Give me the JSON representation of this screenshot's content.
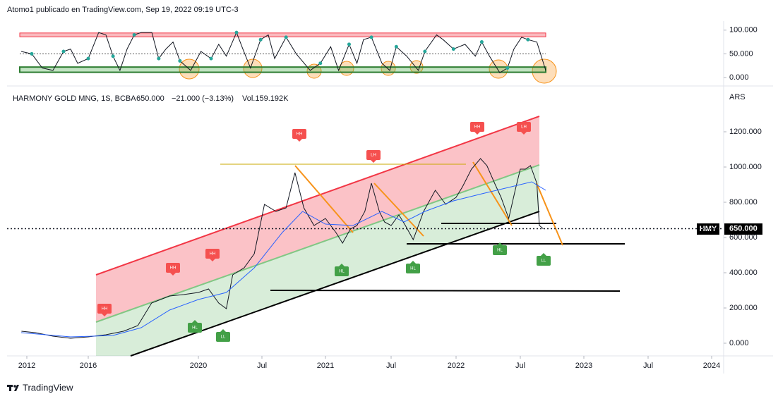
{
  "header": "Atomo1 publicado en TradingView.com, Sep 19, 2022 09:19 UTC-3",
  "footer": "TradingView",
  "chart_data": [
    {
      "type": "line",
      "xlim": [
        2011.55,
        2024.2
      ],
      "ylim": [
        -12,
        119
      ],
      "yticks": [
        {
          "value": 100,
          "label": "100.000"
        },
        {
          "value": 50,
          "label": "50.000"
        },
        {
          "value": 0,
          "label": "0.000"
        }
      ],
      "upper_band": [
        86,
        94
      ],
      "lower_band": [
        11,
        22
      ],
      "midline": 50,
      "series": [
        {
          "color": "#131722",
          "x": [
            2011.63,
            2012.32,
            2013.01,
            2013.7,
            2014.39,
            2014.85,
            2015.31,
            2016,
            2016.38,
            2016.64,
            2016.9,
            2017.15,
            2017.41,
            2017.67,
            2017.92,
            2018.31,
            2018.56,
            2018.82,
            2019.08,
            2019.33,
            2019.72,
            2020.02,
            2020.1,
            2020.16,
            2020.22,
            2020.3,
            2020.35,
            2020.41,
            2020.49,
            2020.55,
            2020.6,
            2020.69,
            2020.77,
            2020.88,
            2020.96,
            2021.04,
            2021.1,
            2021.18,
            2021.24,
            2021.29,
            2021.35,
            2021.43,
            2021.49,
            2021.54,
            2021.62,
            2021.71,
            2021.76,
            2021.85,
            2021.9,
            2021.98,
            2022.07,
            2022.15,
            2022.2,
            2022.26,
            2022.34,
            2022.4,
            2022.45,
            2022.51,
            2022.56,
            2022.63,
            2022.7
          ],
          "values": [
            55,
            50,
            20,
            15,
            55,
            60,
            30,
            40,
            95,
            90,
            45,
            15,
            60,
            90,
            95,
            95,
            40,
            60,
            75,
            35,
            15,
            55,
            40,
            70,
            45,
            95,
            60,
            20,
            80,
            90,
            40,
            85,
            50,
            15,
            30,
            65,
            15,
            70,
            30,
            80,
            85,
            30,
            15,
            65,
            45,
            15,
            55,
            90,
            80,
            60,
            70,
            45,
            75,
            45,
            10,
            20,
            60,
            85,
            80,
            75,
            15
          ]
        }
      ]
    },
    {
      "type": "line",
      "title": "HARMONY GOLD MNG, 1S, BCBA",
      "last_text": "650.000",
      "change_text": "−21.000 (−3.13%)",
      "volume_text": "Vol.159.192K",
      "currency": "ARS",
      "symbol": "HMY",
      "last": {
        "value": 650,
        "label": "650.000"
      },
      "xlim": [
        2011.55,
        2024.2
      ],
      "xticks": [
        2012,
        2016,
        2020,
        {
          "value": 2020.5,
          "label": "Jul"
        },
        2021,
        {
          "value": 2021.5,
          "label": "Jul"
        },
        2022,
        {
          "value": 2022.5,
          "label": "Jul"
        },
        2023,
        {
          "value": 2023.5,
          "label": "Jul"
        },
        2024
      ],
      "ylim": [
        -72,
        1436
      ],
      "yticks": [
        {
          "value": 1200,
          "label": "1200.000"
        },
        {
          "value": 1000,
          "label": "1000.000"
        },
        {
          "value": 800,
          "label": "800.000"
        },
        {
          "value": 600,
          "label": "600.000"
        },
        {
          "value": 400,
          "label": "400.000"
        },
        {
          "value": 200,
          "label": "200.000"
        },
        {
          "value": 0,
          "label": "0.000"
        }
      ],
      "series": [
        {
          "color": "#131722",
          "x": [
            2011.65,
            2012.55,
            2013.7,
            2014.85,
            2016,
            2016.64,
            2017.28,
            2017.8,
            2018.3,
            2018.95,
            2019.46,
            2020,
            2020.08,
            2020.16,
            2020.22,
            2020.27,
            2020.36,
            2020.44,
            2020.52,
            2020.61,
            2020.69,
            2020.76,
            2020.83,
            2020.91,
            2021,
            2021.08,
            2021.13,
            2021.19,
            2021.24,
            2021.3,
            2021.35,
            2021.41,
            2021.45,
            2021.5,
            2021.56,
            2021.61,
            2021.67,
            2021.75,
            2021.84,
            2021.92,
            2022,
            2022.05,
            2022.12,
            2022.19,
            2022.24,
            2022.3,
            2022.35,
            2022.41,
            2022.46,
            2022.5,
            2022.54,
            2022.58,
            2022.63,
            2022.65,
            2022.68
          ],
          "values": [
            68,
            60,
            40,
            28,
            36,
            48,
            68,
            100,
            228,
            268,
            276,
            288,
            308,
            228,
            196,
            388,
            428,
            508,
            788,
            748,
            768,
            968,
            768,
            668,
            708,
            628,
            568,
            648,
            668,
            748,
            908,
            748,
            688,
            668,
            728,
            668,
            588,
            748,
            868,
            788,
            828,
            888,
            988,
            1048,
            1008,
            908,
            828,
            708,
            868,
            988,
            988,
            1008,
            908,
            668,
            650
          ]
        },
        {
          "color": "#2962ff",
          "x": [
            2011.63,
            2014.85,
            2016.9,
            2017.92,
            2018.95,
            2020,
            2020.22,
            2020.44,
            2020.66,
            2020.82,
            2021,
            2021.21,
            2021.43,
            2021.6,
            2021.76,
            2021.98,
            2022.2,
            2022.43,
            2022.59,
            2022.7
          ],
          "values": [
            60,
            36,
            44,
            88,
            188,
            248,
            288,
            428,
            628,
            748,
            676,
            668,
            748,
            688,
            748,
            808,
            848,
            888,
            916,
            868
          ]
        }
      ],
      "annotations": [
        "HH",
        "HH",
        "HH",
        "HH",
        "LH",
        "HH",
        "LH",
        "HL",
        "LL",
        "HL",
        "HL",
        "HL",
        "LL"
      ]
    }
  ]
}
